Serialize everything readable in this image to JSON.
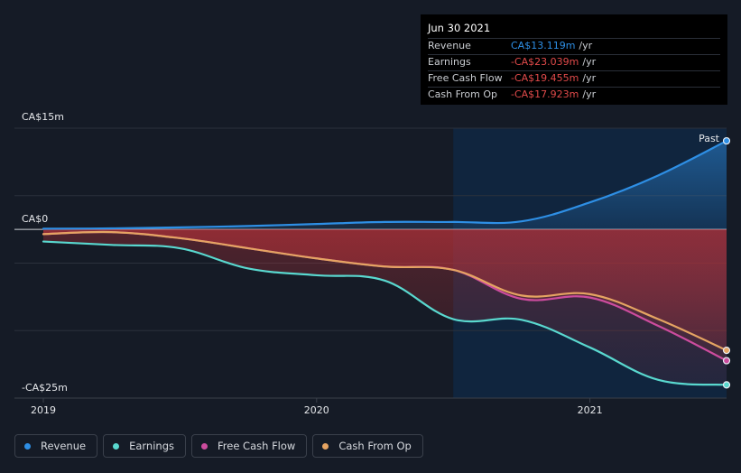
{
  "chart_data": {
    "type": "line",
    "unit": "CA$m",
    "x_ticks": [
      {
        "label": "2019",
        "value": 2019.0
      },
      {
        "label": "2020",
        "value": 2020.0
      },
      {
        "label": "2021",
        "value": 2021.0
      }
    ],
    "y_labels": [
      {
        "label": "CA$15m",
        "value": 15
      },
      {
        "label": "CA$0",
        "value": 0
      },
      {
        "label": "-CA$25m",
        "value": -25
      }
    ],
    "ylim": [
      -25,
      15
    ],
    "xlim": [
      2019.0,
      2021.5
    ],
    "past_label": "Past",
    "past_start": 2020.5,
    "series": [
      {
        "key": "revenue",
        "name": "Revenue",
        "color": "#2e8fe5",
        "x": [
          2019.0,
          2019.25,
          2019.5,
          2019.75,
          2020.0,
          2020.25,
          2020.5,
          2020.75,
          2021.0,
          2021.25,
          2021.5
        ],
        "y": [
          0.1,
          0.15,
          0.3,
          0.5,
          0.8,
          1.1,
          1.1,
          1.2,
          4.0,
          8.0,
          13.119
        ]
      },
      {
        "key": "earnings",
        "name": "Earnings",
        "color": "#59d8cf",
        "x": [
          2019.0,
          2019.25,
          2019.5,
          2019.75,
          2020.0,
          2020.25,
          2020.5,
          2020.75,
          2021.0,
          2021.25,
          2021.5
        ],
        "y": [
          -1.8,
          -2.3,
          -2.8,
          -5.8,
          -6.8,
          -7.6,
          -13.3,
          -13.4,
          -17.5,
          -22.3,
          -23.039
        ]
      },
      {
        "key": "free_cash_flow",
        "name": "Free Cash Flow",
        "color": "#cc4c9e",
        "x": [
          2019.0,
          2019.25,
          2019.5,
          2019.75,
          2020.0,
          2020.25,
          2020.5,
          2020.75,
          2021.0,
          2021.25,
          2021.5
        ],
        "y": [
          -0.7,
          -0.4,
          -1.3,
          -2.8,
          -4.3,
          -5.5,
          -6.0,
          -10.3,
          -10.1,
          -14.3,
          -19.455
        ]
      },
      {
        "key": "cash_from_op",
        "name": "Cash From Op",
        "color": "#e5a462",
        "x": [
          2019.0,
          2019.25,
          2019.5,
          2019.75,
          2020.0,
          2020.25,
          2020.5,
          2020.75,
          2021.0,
          2021.25,
          2021.5
        ],
        "y": [
          -0.7,
          -0.4,
          -1.3,
          -2.8,
          -4.3,
          -5.5,
          -6.0,
          -9.8,
          -9.6,
          -13.3,
          -17.923
        ]
      }
    ]
  },
  "tooltip": {
    "date": "Jun 30 2021",
    "rows": [
      {
        "label": "Revenue",
        "value": "CA$13.119m",
        "unit": "/yr",
        "color": "#2e8fe5"
      },
      {
        "label": "Earnings",
        "value": "-CA$23.039m",
        "unit": "/yr",
        "color": "#e04a4a"
      },
      {
        "label": "Free Cash Flow",
        "value": "-CA$19.455m",
        "unit": "/yr",
        "color": "#e04a4a"
      },
      {
        "label": "Cash From Op",
        "value": "-CA$17.923m",
        "unit": "/yr",
        "color": "#e04a4a"
      }
    ]
  },
  "legend": [
    {
      "label": "Revenue",
      "color": "#2e8fe5"
    },
    {
      "label": "Earnings",
      "color": "#59d8cf"
    },
    {
      "label": "Free Cash Flow",
      "color": "#cc4c9e"
    },
    {
      "label": "Cash From Op",
      "color": "#e5a462"
    }
  ]
}
